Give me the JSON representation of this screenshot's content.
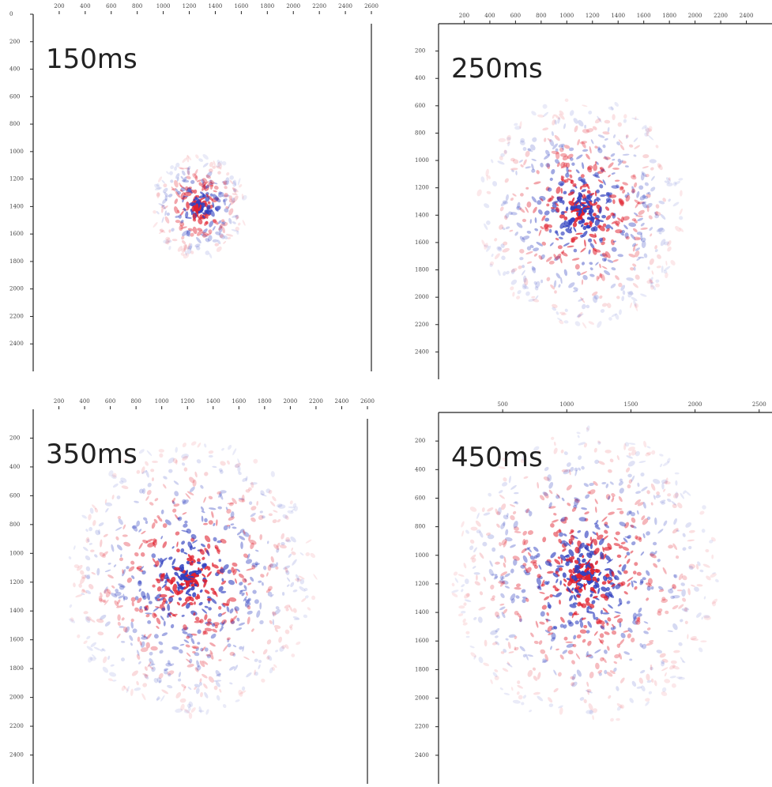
{
  "panels": [
    {
      "label": "150ms",
      "xlim": [
        0,
        2600
      ],
      "ylim": [
        0,
        2600
      ],
      "xticks": [
        200,
        400,
        600,
        800,
        1000,
        1200,
        1400,
        1600,
        1800,
        2000,
        2200,
        2400,
        2600
      ],
      "yticks": [
        0,
        200,
        400,
        600,
        800,
        1000,
        1200,
        1400,
        1600,
        1800,
        2000,
        2200,
        2400
      ]
    },
    {
      "label": "250ms",
      "xlim": [
        0,
        2600
      ],
      "ylim": [
        0,
        2600
      ],
      "xticks": [
        200,
        400,
        600,
        800,
        1000,
        1200,
        1400,
        1600,
        1800,
        2000,
        2200,
        2400
      ],
      "yticks": [
        200,
        400,
        600,
        800,
        1000,
        1200,
        1400,
        1600,
        1800,
        2000,
        2200,
        2400
      ]
    },
    {
      "label": "350ms",
      "xlim": [
        0,
        2600
      ],
      "ylim": [
        0,
        2600
      ],
      "xticks": [
        200,
        400,
        600,
        800,
        1000,
        1200,
        1400,
        1600,
        1800,
        2000,
        2200,
        2400,
        2600
      ],
      "yticks": [
        200,
        400,
        600,
        800,
        1000,
        1200,
        1400,
        1600,
        1800,
        2000,
        2200,
        2400
      ]
    },
    {
      "label": "450ms",
      "xlim": [
        0,
        2600
      ],
      "ylim": [
        0,
        2600
      ],
      "xticks": [
        500,
        1000,
        1500,
        2000,
        2500
      ],
      "yticks": [
        200,
        400,
        600,
        800,
        1000,
        1200,
        1400,
        1600,
        1800,
        2000,
        2200,
        2400
      ]
    }
  ]
}
